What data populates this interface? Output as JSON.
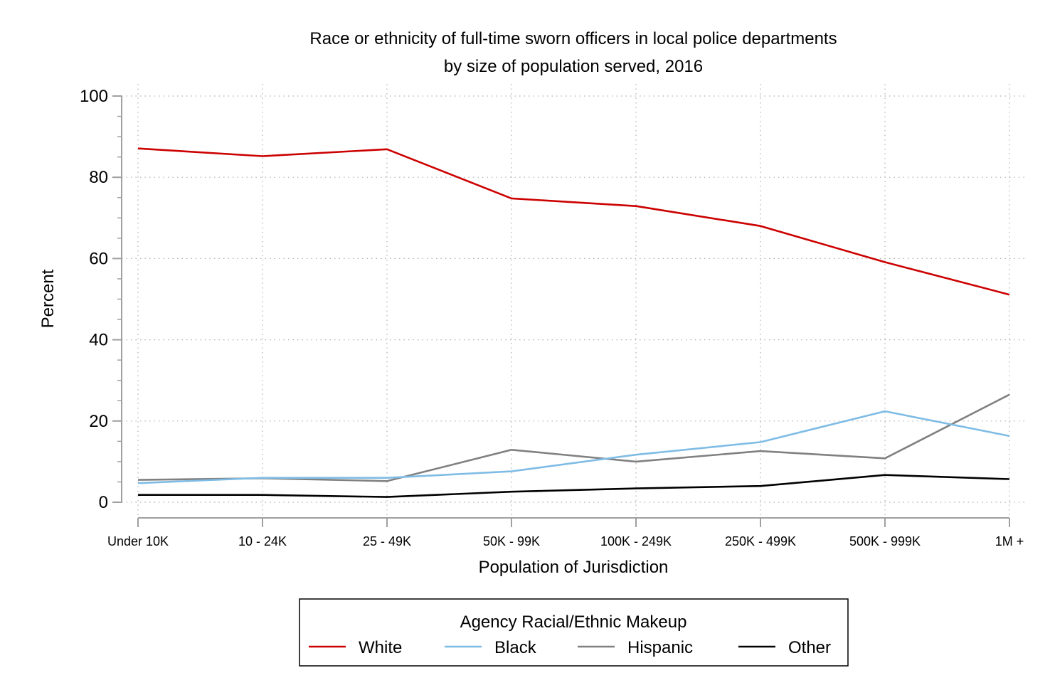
{
  "chart_data": {
    "type": "line",
    "title": "Race or ethnicity of full-time sworn officers in local police departments",
    "subtitle": "by size of population served, 2016",
    "xlabel": "Population of Jurisdiction",
    "ylabel": "Percent",
    "categories": [
      "Under 10K",
      "10 - 24K",
      "25 - 49K",
      "50K - 99K",
      "100K - 249K",
      "250K - 499K",
      "500K - 999K",
      "1M +"
    ],
    "ylim": [
      0,
      100
    ],
    "yticks": [
      0,
      20,
      40,
      60,
      80,
      100
    ],
    "grid": true,
    "legend": {
      "title": "Agency Racial/Ethnic Makeup",
      "placement": "bottom"
    },
    "series": [
      {
        "name": "White",
        "color": "#cc0000",
        "values": [
          87.1,
          85.2,
          86.9,
          74.8,
          72.9,
          68.0,
          59.1,
          51.1
        ]
      },
      {
        "name": "Black",
        "color": "#7fbce5",
        "values": [
          4.7,
          6.0,
          6.0,
          7.6,
          11.7,
          14.8,
          22.4,
          16.3
        ]
      },
      {
        "name": "Hispanic",
        "color": "#808080",
        "values": [
          5.5,
          5.9,
          5.2,
          12.9,
          10.0,
          12.6,
          10.8,
          26.5
        ]
      },
      {
        "name": "Other",
        "color": "#000000",
        "values": [
          1.8,
          1.8,
          1.3,
          2.6,
          3.4,
          4.0,
          6.7,
          5.7
        ]
      }
    ]
  }
}
